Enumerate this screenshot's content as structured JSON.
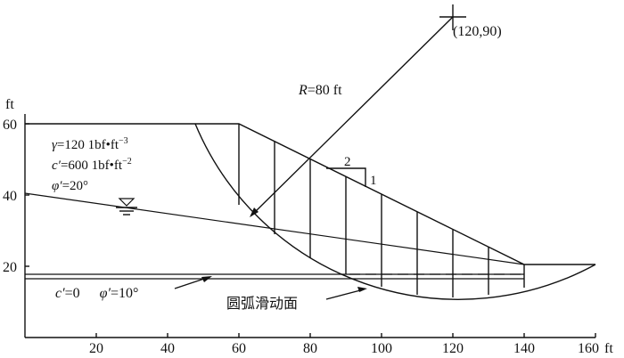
{
  "axes": {
    "y_unit": "ft",
    "x_unit": "ft",
    "y_ticks": [
      {
        "value": 20,
        "label": "20"
      },
      {
        "value": 40,
        "label": "40"
      },
      {
        "value": 60,
        "label": "60"
      }
    ],
    "x_ticks": [
      {
        "value": 20,
        "label": "20"
      },
      {
        "value": 40,
        "label": "40"
      },
      {
        "value": 60,
        "label": "60"
      },
      {
        "value": 80,
        "label": "80"
      },
      {
        "value": 100,
        "label": "100"
      },
      {
        "value": 120,
        "label": "120"
      },
      {
        "value": 140,
        "label": "140"
      },
      {
        "value": 160,
        "label": "160"
      }
    ]
  },
  "center_label": "(120,90)",
  "radius_label": {
    "symbol": "R",
    "text": "=80  ft"
  },
  "properties": {
    "gamma": {
      "sym": "γ",
      "text": "=120  1bf•ft",
      "exp": "−3"
    },
    "cohesion": {
      "sym": "c′",
      "text": "=600  1bf•ft",
      "exp": "−2"
    },
    "phi": {
      "sym": "φ′",
      "text": "=20°"
    }
  },
  "slope_ratio": {
    "horizontal": "2",
    "vertical": "1"
  },
  "weak_layer": {
    "c_sym": "c′",
    "c_text": "=0",
    "phi_sym": "φ′",
    "phi_text": "=10°"
  },
  "failure_label": "圆弧滑动面"
}
